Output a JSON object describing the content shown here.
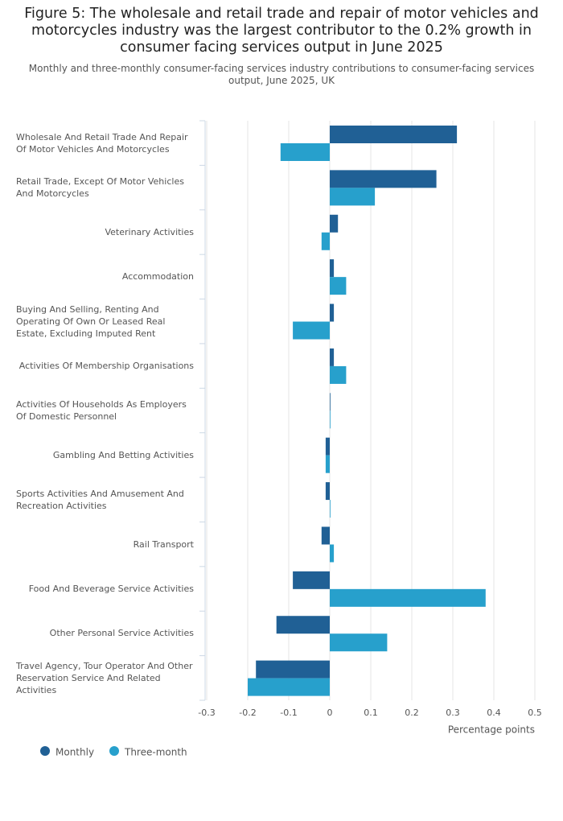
{
  "chart_data": {
    "type": "bar",
    "orientation": "horizontal",
    "title": "Figure 5: The wholesale and retail trade and repair of motor vehicles and motorcycles industry was the largest contributor to the 0.2% growth in consumer facing services output in June 2025",
    "subtitle": "Monthly and three-monthly consumer-facing services industry contributions to consumer-facing services output, June 2025, UK",
    "categories": [
      "Wholesale And Retail Trade And Repair Of Motor Vehicles And Motorcycles",
      "Retail Trade, Except Of Motor Vehicles And Motorcycles",
      "Veterinary Activities",
      "Accommodation",
      "Buying And Selling, Renting And Operating Of Own Or Leased Real Estate, Excluding Imputed Rent",
      "Activities Of Membership Organisations",
      "Activities Of Households As Employers Of Domestic Personnel",
      "Gambling And Betting Activities",
      "Sports Activities And Amusement And Recreation Activities",
      "Rail Transport",
      "Food And Beverage Service Activities",
      "Other Personal Service Activities",
      "Travel Agency, Tour Operator And Other Reservation Service And Related Activities"
    ],
    "series": [
      {
        "name": "Monthly",
        "color": "#206095",
        "values": [
          0.31,
          0.26,
          0.02,
          0.01,
          0.01,
          0.01,
          0.0,
          -0.01,
          -0.01,
          -0.02,
          -0.09,
          -0.13,
          -0.18
        ]
      },
      {
        "name": "Three-month",
        "color": "#27a0cc",
        "values": [
          -0.12,
          0.11,
          -0.02,
          0.04,
          -0.09,
          0.04,
          0.0,
          -0.01,
          0.0,
          0.01,
          0.38,
          0.14,
          -0.2
        ]
      }
    ],
    "xlabel": "Percentage points",
    "xlim": [
      -0.3,
      0.5
    ],
    "xticks": [
      -0.3,
      -0.2,
      -0.1,
      0,
      0.1,
      0.2,
      0.3,
      0.4,
      0.5
    ],
    "grid": true
  }
}
